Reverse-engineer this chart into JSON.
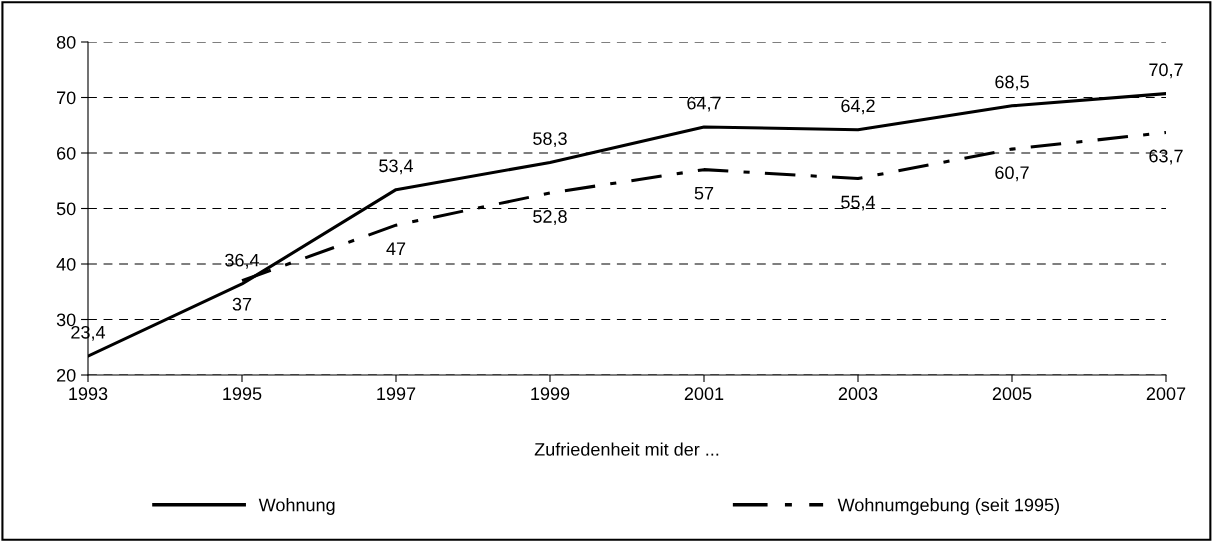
{
  "chart_data": {
    "type": "line",
    "x": [
      1993,
      1995,
      1997,
      1999,
      2001,
      2003,
      2005,
      2007
    ],
    "series": [
      {
        "name": "Wohnung",
        "color": "#000000",
        "line_style": "solid",
        "values": [
          23.4,
          36.4,
          53.4,
          58.3,
          64.7,
          64.2,
          68.5,
          70.7
        ],
        "value_labels": [
          "23,4",
          "36,4",
          "53,4",
          "58,3",
          "64,7",
          "64,2",
          "68,5",
          "70,7"
        ]
      },
      {
        "name": "Wohnumgebung (seit 1995)",
        "color": "#000000",
        "line_style": "dashed",
        "values": [
          null,
          37,
          47,
          52.8,
          57,
          55.4,
          60.7,
          63.7
        ],
        "value_labels": [
          null,
          "37",
          "47",
          "52,8",
          "57",
          "55,4",
          "60,7",
          "63,7"
        ]
      }
    ],
    "xlabel": "Zufriedenheit mit der ...",
    "xlim": [
      1993,
      2007
    ],
    "xticks": [
      1993,
      1995,
      1997,
      1999,
      2001,
      2003,
      2005,
      2007
    ],
    "ylim": [
      20,
      80
    ],
    "yticks": [
      20,
      30,
      40,
      50,
      60,
      70,
      80
    ],
    "grid": "y",
    "legend": "bottom",
    "marker": "none"
  }
}
